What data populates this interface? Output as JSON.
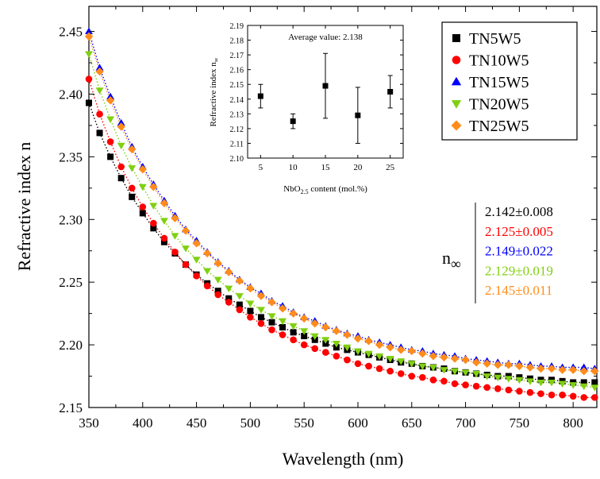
{
  "chart_data": [
    {
      "type": "scatter",
      "title": "",
      "xlabel": "Wavelength (nm)",
      "ylabel": "Refractive index n",
      "xlim": [
        350,
        822
      ],
      "ylim": [
        2.15,
        2.47
      ],
      "x_ticks": [
        350,
        400,
        450,
        500,
        550,
        600,
        650,
        700,
        750,
        800
      ],
      "x_tick_labels": [
        "350",
        "400",
        "450",
        "500",
        "550",
        "600",
        "650",
        "700",
        "750",
        "800"
      ],
      "y_ticks": [
        2.15,
        2.2,
        2.25,
        2.3,
        2.35,
        2.4,
        2.45
      ],
      "y_tick_labels": [
        "2.15",
        "2.20",
        "2.25",
        "2.30",
        "2.35",
        "2.40",
        "2.45"
      ],
      "grid": false,
      "legend_position": "top-right",
      "fit_lines": "dotted Sellmeier/Cauchy fits in series colors",
      "series": [
        {
          "name": "TN5W5",
          "color": "#000000",
          "marker": "square",
          "x": [
            350,
            360,
            370,
            380,
            390,
            400,
            410,
            420,
            430,
            440,
            450,
            460,
            470,
            480,
            490,
            500,
            510,
            520,
            530,
            540,
            550,
            560,
            570,
            580,
            590,
            600,
            610,
            620,
            630,
            640,
            650,
            660,
            670,
            680,
            690,
            700,
            710,
            720,
            730,
            740,
            750,
            760,
            770,
            780,
            790,
            800,
            810,
            820
          ],
          "y": [
            2.393,
            2.369,
            2.35,
            2.333,
            2.318,
            2.305,
            2.293,
            2.282,
            2.273,
            2.264,
            2.256,
            2.249,
            2.243,
            2.237,
            2.232,
            2.227,
            2.222,
            2.218,
            2.214,
            2.21,
            2.207,
            2.204,
            2.201,
            2.198,
            2.196,
            2.194,
            2.192,
            2.19,
            2.188,
            2.186,
            2.185,
            2.183,
            2.182,
            2.181,
            2.179,
            2.178,
            2.177,
            2.176,
            2.175,
            2.175,
            2.174,
            2.173,
            2.172,
            2.172,
            2.171,
            2.17,
            2.17,
            2.17
          ]
        },
        {
          "name": "TN10W5",
          "color": "#ff0000",
          "marker": "circle",
          "x": [
            350,
            360,
            370,
            380,
            390,
            400,
            410,
            420,
            430,
            440,
            450,
            460,
            470,
            480,
            490,
            500,
            510,
            520,
            530,
            540,
            550,
            560,
            570,
            580,
            590,
            600,
            610,
            620,
            630,
            640,
            650,
            660,
            670,
            680,
            690,
            700,
            710,
            720,
            730,
            740,
            750,
            760,
            770,
            780,
            790,
            800,
            810,
            820
          ],
          "y": [
            2.412,
            2.384,
            2.362,
            2.342,
            2.325,
            2.31,
            2.297,
            2.285,
            2.274,
            2.264,
            2.255,
            2.247,
            2.24,
            2.234,
            2.228,
            2.222,
            2.217,
            2.212,
            2.208,
            2.204,
            2.2,
            2.197,
            2.194,
            2.191,
            2.188,
            2.185,
            2.183,
            2.181,
            2.179,
            2.177,
            2.175,
            2.174,
            2.172,
            2.171,
            2.169,
            2.168,
            2.167,
            2.166,
            2.165,
            2.164,
            2.163,
            2.162,
            2.161,
            2.16,
            2.16,
            2.159,
            2.158,
            2.158
          ]
        },
        {
          "name": "TN15W5",
          "color": "#0000ff",
          "marker": "triangle-up",
          "x": [
            350,
            360,
            370,
            380,
            390,
            400,
            410,
            420,
            430,
            440,
            450,
            460,
            470,
            480,
            490,
            500,
            510,
            520,
            530,
            540,
            550,
            560,
            570,
            580,
            590,
            600,
            610,
            620,
            630,
            640,
            650,
            660,
            670,
            680,
            690,
            700,
            710,
            720,
            730,
            740,
            750,
            760,
            770,
            780,
            790,
            800,
            810,
            820
          ],
          "y": [
            2.45,
            2.421,
            2.398,
            2.377,
            2.358,
            2.342,
            2.328,
            2.315,
            2.303,
            2.292,
            2.283,
            2.274,
            2.266,
            2.259,
            2.252,
            2.246,
            2.241,
            2.235,
            2.231,
            2.226,
            2.222,
            2.219,
            2.215,
            2.212,
            2.209,
            2.207,
            2.204,
            2.202,
            2.2,
            2.198,
            2.196,
            2.195,
            2.193,
            2.192,
            2.191,
            2.189,
            2.188,
            2.187,
            2.186,
            2.185,
            2.185,
            2.184,
            2.183,
            2.183,
            2.182,
            2.182,
            2.182,
            2.181
          ]
        },
        {
          "name": "TN20W5",
          "color": "#80d010",
          "marker": "triangle-down",
          "x": [
            350,
            360,
            370,
            380,
            390,
            400,
            410,
            420,
            430,
            440,
            450,
            460,
            470,
            480,
            490,
            500,
            510,
            520,
            530,
            540,
            550,
            560,
            570,
            580,
            590,
            600,
            610,
            620,
            630,
            640,
            650,
            660,
            670,
            680,
            690,
            700,
            710,
            720,
            730,
            740,
            750,
            760,
            770,
            780,
            790,
            800,
            810,
            820
          ],
          "y": [
            2.432,
            2.403,
            2.38,
            2.359,
            2.341,
            2.326,
            2.311,
            2.299,
            2.287,
            2.277,
            2.268,
            2.259,
            2.252,
            2.245,
            2.239,
            2.233,
            2.228,
            2.223,
            2.219,
            2.215,
            2.211,
            2.207,
            2.204,
            2.201,
            2.198,
            2.195,
            2.193,
            2.191,
            2.189,
            2.187,
            2.185,
            2.183,
            2.182,
            2.18,
            2.179,
            2.178,
            2.177,
            2.175,
            2.174,
            2.173,
            2.172,
            2.171,
            2.17,
            2.17,
            2.169,
            2.168,
            2.167,
            2.166
          ]
        },
        {
          "name": "TN25W5",
          "color": "#ff8c1a",
          "marker": "diamond",
          "x": [
            350,
            360,
            370,
            380,
            390,
            400,
            410,
            420,
            430,
            440,
            450,
            460,
            470,
            480,
            490,
            500,
            510,
            520,
            530,
            540,
            550,
            560,
            570,
            580,
            590,
            600,
            610,
            620,
            630,
            640,
            650,
            660,
            670,
            680,
            690,
            700,
            710,
            720,
            730,
            740,
            750,
            760,
            770,
            780,
            790,
            800,
            810,
            820
          ],
          "y": [
            2.446,
            2.418,
            2.395,
            2.374,
            2.356,
            2.34,
            2.326,
            2.313,
            2.301,
            2.291,
            2.281,
            2.273,
            2.265,
            2.258,
            2.251,
            2.245,
            2.239,
            2.234,
            2.229,
            2.225,
            2.221,
            2.217,
            2.214,
            2.211,
            2.208,
            2.205,
            2.203,
            2.2,
            2.198,
            2.196,
            2.195,
            2.193,
            2.191,
            2.19,
            2.189,
            2.188,
            2.186,
            2.185,
            2.184,
            2.184,
            2.183,
            2.182,
            2.181,
            2.181,
            2.18,
            2.18,
            2.179,
            2.179
          ]
        }
      ],
      "annotation": {
        "symbol": "n",
        "subscript": "∞",
        "values": [
          {
            "text": "2.142±0.008",
            "color": "#000000"
          },
          {
            "text": "2.125±0.005",
            "color": "#ff0000"
          },
          {
            "text": "2.149±0.022",
            "color": "#0000ff"
          },
          {
            "text": "2.129±0.019",
            "color": "#80d010"
          },
          {
            "text": "2.145±0.011",
            "color": "#ff8c1a"
          }
        ]
      }
    },
    {
      "type": "scatter",
      "title": "Average value: 2.138",
      "xlabel": "NbO",
      "xlabel_sub": "2.5",
      "xlabel_rest": " content (mol.%)",
      "ylabel": "Refractive index n",
      "ylabel_sub": "∞",
      "xlim": [
        3,
        27
      ],
      "ylim": [
        2.1,
        2.19
      ],
      "x_ticks": [
        5,
        10,
        15,
        20,
        25
      ],
      "x_tick_labels": [
        "5",
        "10",
        "15",
        "20",
        "25"
      ],
      "y_ticks": [
        2.1,
        2.11,
        2.12,
        2.13,
        2.14,
        2.15,
        2.16,
        2.17,
        2.18,
        2.19
      ],
      "y_tick_labels": [
        "2.10",
        "2.11",
        "2.12",
        "2.13",
        "2.14",
        "2.15",
        "2.16",
        "2.17",
        "2.18",
        "2.19"
      ],
      "grid": false,
      "legend_position": "none",
      "x": [
        5,
        10,
        15,
        20,
        25
      ],
      "y": [
        2.142,
        2.125,
        2.149,
        2.129,
        2.145
      ],
      "yerr": [
        0.008,
        0.005,
        0.022,
        0.019,
        0.011
      ],
      "marker": "square",
      "color": "#000000"
    }
  ]
}
